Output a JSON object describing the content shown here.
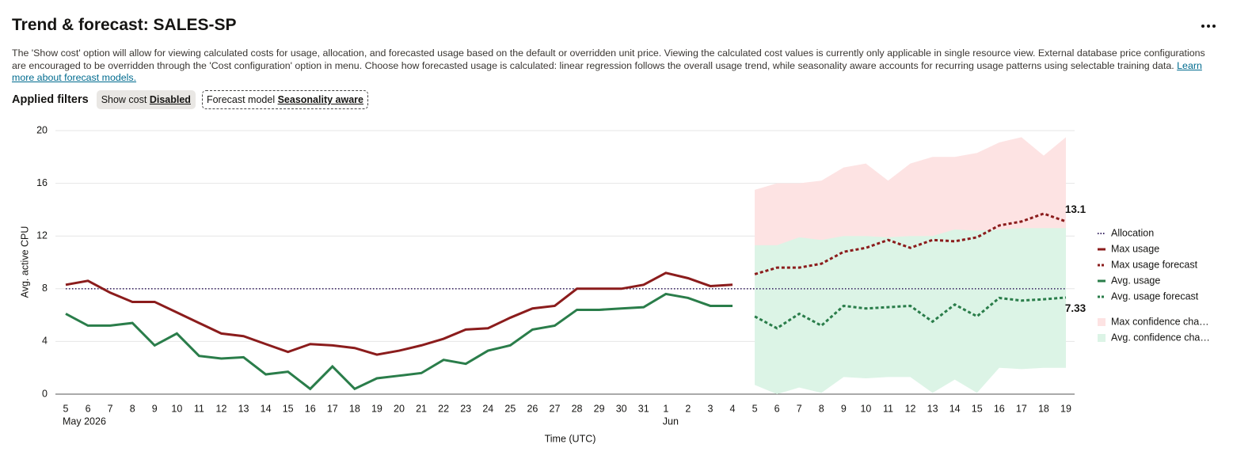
{
  "header": {
    "title": "Trend & forecast: SALES-SP",
    "description": "The 'Show cost' option will allow for viewing calculated costs for usage, allocation, and forecasted usage based on the default or overridden unit price. Viewing the calculated cost values is currently only applicable in single resource view. External database price configurations are encouraged to be overridden through the 'Cost configuration' option in menu. Choose how forecasted usage is calculated: linear regression follows the overall usage trend, while seasonality aware accounts for recurring usage patterns using selectable training data.",
    "link": "Learn more about forecast models."
  },
  "filters": {
    "label": "Applied filters",
    "chips": [
      {
        "name": "Show cost",
        "value": "Disabled"
      },
      {
        "name": "Forecast model",
        "value": "Seasonality aware"
      }
    ]
  },
  "chart_data": {
    "type": "line",
    "y_label": "Avg. active CPU",
    "x_label": "Time (UTC)",
    "categories": [
      "5",
      "6",
      "7",
      "8",
      "9",
      "10",
      "11",
      "12",
      "13",
      "14",
      "15",
      "16",
      "17",
      "18",
      "19",
      "20",
      "21",
      "22",
      "23",
      "24",
      "25",
      "26",
      "27",
      "28",
      "29",
      "30",
      "31",
      "1",
      "2",
      "3",
      "4",
      "5",
      "6",
      "7",
      "8",
      "9",
      "10",
      "11",
      "12",
      "13",
      "14",
      "15",
      "16",
      "17",
      "18",
      "19"
    ],
    "sublabels": [
      "May 2026",
      null,
      null,
      null,
      null,
      null,
      null,
      null,
      null,
      null,
      null,
      null,
      null,
      null,
      null,
      null,
      null,
      null,
      null,
      null,
      null,
      null,
      null,
      null,
      null,
      null,
      null,
      "Jun",
      null,
      null,
      null,
      null,
      null,
      null,
      null,
      null,
      null,
      null,
      null,
      null,
      null,
      null,
      null,
      null,
      null,
      null
    ],
    "ylim": [
      0,
      20
    ],
    "yticks": [
      0,
      4,
      8,
      12,
      16,
      20
    ],
    "grid": true,
    "series": [
      {
        "name": "Max confidence cha…",
        "kind": "band",
        "color": "#fde3e3",
        "upper": [
          null,
          null,
          null,
          null,
          null,
          null,
          null,
          null,
          null,
          null,
          null,
          null,
          null,
          null,
          null,
          null,
          null,
          null,
          null,
          null,
          null,
          null,
          null,
          null,
          null,
          null,
          null,
          null,
          null,
          null,
          null,
          15.5,
          16.0,
          16.0,
          16.2,
          17.2,
          17.5,
          16.2,
          17.5,
          18.0,
          18.0,
          18.3,
          19.1,
          19.5,
          18.1,
          19.5
        ],
        "lower": [
          null,
          null,
          null,
          null,
          null,
          null,
          null,
          null,
          null,
          null,
          null,
          null,
          null,
          null,
          null,
          null,
          null,
          null,
          null,
          null,
          null,
          null,
          null,
          null,
          null,
          null,
          null,
          null,
          null,
          null,
          null,
          6.6,
          7.1,
          7.1,
          7.4,
          8.3,
          8.6,
          9.2,
          8.6,
          9.2,
          9.1,
          9.4,
          10.3,
          10.6,
          11.2,
          10.6
        ]
      },
      {
        "name": "Avg. confidence cha…",
        "kind": "band",
        "color": "#dcf4e6",
        "upper": [
          null,
          null,
          null,
          null,
          null,
          null,
          null,
          null,
          null,
          null,
          null,
          null,
          null,
          null,
          null,
          null,
          null,
          null,
          null,
          null,
          null,
          null,
          null,
          null,
          null,
          null,
          null,
          null,
          null,
          null,
          null,
          11.3,
          11.3,
          11.9,
          11.7,
          12.0,
          12.0,
          11.9,
          12.0,
          12.0,
          12.5,
          12.4,
          12.5,
          12.6,
          12.6,
          12.6
        ],
        "lower": [
          null,
          null,
          null,
          null,
          null,
          null,
          null,
          null,
          null,
          null,
          null,
          null,
          null,
          null,
          null,
          null,
          null,
          null,
          null,
          null,
          null,
          null,
          null,
          null,
          null,
          null,
          null,
          null,
          null,
          null,
          null,
          0.7,
          0,
          0.5,
          0.1,
          1.3,
          1.2,
          1.3,
          1.3,
          0.1,
          1.1,
          0.1,
          2.0,
          1.9,
          2.0,
          2.0
        ]
      },
      {
        "name": "Allocation",
        "kind": "line",
        "style": "dotted",
        "color": "#3d2a66",
        "values": [
          8,
          8,
          8,
          8,
          8,
          8,
          8,
          8,
          8,
          8,
          8,
          8,
          8,
          8,
          8,
          8,
          8,
          8,
          8,
          8,
          8,
          8,
          8,
          8,
          8,
          8,
          8,
          8,
          8,
          8,
          8,
          8,
          8,
          8,
          8,
          8,
          8,
          8,
          8,
          8,
          8,
          8,
          8,
          8,
          8,
          8
        ]
      },
      {
        "name": "Max usage",
        "kind": "line",
        "style": "solid",
        "color": "#8b1c1c",
        "values": [
          8.3,
          8.6,
          7.7,
          7.0,
          7.0,
          6.2,
          5.4,
          4.6,
          4.4,
          3.8,
          3.2,
          3.8,
          3.7,
          3.5,
          3.0,
          3.3,
          3.7,
          4.2,
          4.9,
          5.0,
          5.8,
          6.5,
          6.7,
          8.0,
          8.0,
          8.0,
          8.3,
          9.2,
          8.8,
          8.2,
          8.3,
          null,
          null,
          null,
          null,
          null,
          null,
          null,
          null,
          null,
          null,
          null,
          null,
          null,
          null,
          null
        ]
      },
      {
        "name": "Max usage forecast",
        "kind": "line",
        "style": "dashed",
        "color": "#8b1c1c",
        "label_last": true,
        "values": [
          null,
          null,
          null,
          null,
          null,
          null,
          null,
          null,
          null,
          null,
          null,
          null,
          null,
          null,
          null,
          null,
          null,
          null,
          null,
          null,
          null,
          null,
          null,
          null,
          null,
          null,
          null,
          null,
          null,
          null,
          null,
          9.1,
          9.6,
          9.6,
          9.9,
          10.8,
          11.1,
          11.7,
          11.1,
          11.7,
          11.6,
          11.9,
          12.8,
          13.1,
          13.7,
          13.1
        ]
      },
      {
        "name": "Avg. usage",
        "kind": "line",
        "style": "solid",
        "color": "#2a7d4a",
        "values": [
          6.1,
          5.2,
          5.2,
          5.4,
          3.7,
          4.6,
          2.9,
          2.7,
          2.8,
          1.5,
          1.7,
          0.4,
          2.1,
          0.4,
          1.2,
          1.4,
          1.6,
          2.6,
          2.3,
          3.3,
          3.7,
          4.9,
          5.2,
          6.4,
          6.4,
          6.5,
          6.6,
          7.6,
          7.3,
          6.7,
          6.7,
          null,
          null,
          null,
          null,
          null,
          null,
          null,
          null,
          null,
          null,
          null,
          null,
          null,
          null,
          null
        ]
      },
      {
        "name": "Avg. usage forecast",
        "kind": "line",
        "style": "dashed",
        "color": "#2a7d4a",
        "label_last": true,
        "values": [
          null,
          null,
          null,
          null,
          null,
          null,
          null,
          null,
          null,
          null,
          null,
          null,
          null,
          null,
          null,
          null,
          null,
          null,
          null,
          null,
          null,
          null,
          null,
          null,
          null,
          null,
          null,
          null,
          null,
          null,
          null,
          5.9,
          5.0,
          6.1,
          5.2,
          6.7,
          6.5,
          6.6,
          6.7,
          5.5,
          6.8,
          5.9,
          7.3,
          7.1,
          7.2,
          7.33
        ]
      }
    ],
    "legend_order": [
      2,
      3,
      4,
      5,
      6,
      0,
      1
    ]
  }
}
